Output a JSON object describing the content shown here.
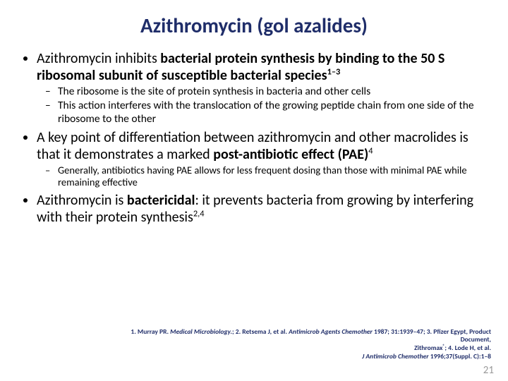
{
  "colors": {
    "title": "#1f2d69",
    "refs": "#1f2d69",
    "pagenum": "#9a9a9a",
    "body": "#000000",
    "background": "#ffffff"
  },
  "title": {
    "part1": "Azithromycin",
    "part2": " (gol azalides)"
  },
  "bullets": {
    "b1_pre": "Azithromycin inhibits ",
    "b1_bold": "bacterial protein synthesis by binding to the 50 S ribosomal subunit of susceptible bacterial species",
    "b1_sup": "1–3",
    "b1_sub1": "The ribosome is the site of protein synthesis in bacteria and other cells",
    "b1_sub2": "This action interferes with the translocation of the growing peptide chain from one side of the ribosome to the other",
    "b2_pre": "A key point of differentiation between azithromycin and other macrolides is that it demonstrates a marked ",
    "b2_bold": "post-antibiotic effect (PAE)",
    "b2_sup": "4",
    "b2_sub1": "Generally, antibiotics having PAE allows for less frequent dosing than those with minimal PAE while remaining effective",
    "b3_pre": "Azithromycin is ",
    "b3_bold": "bactericidal",
    "b3_post": ": it prevents bacteria from growing by interfering with their protein synthesis",
    "b3_sup": "2,4"
  },
  "refs": {
    "r1a": "1. Murray PR. ",
    "r1b": "Medical Microbiology.",
    "r1c": "; 2. Retsema J, et al. ",
    "r1d": "Antimicrob Agents Chemother ",
    "r1e": "1987; 31:1939–47; 3. Pfizer Egypt, Product Document,",
    "r2a": "Zithromax",
    "r2b": "; 4. Lode H, et al.",
    "r3a": "J Antimicrob Chemother ",
    "r3b": "1996;37(Suppl. C):1–8"
  },
  "pagenum": "21"
}
